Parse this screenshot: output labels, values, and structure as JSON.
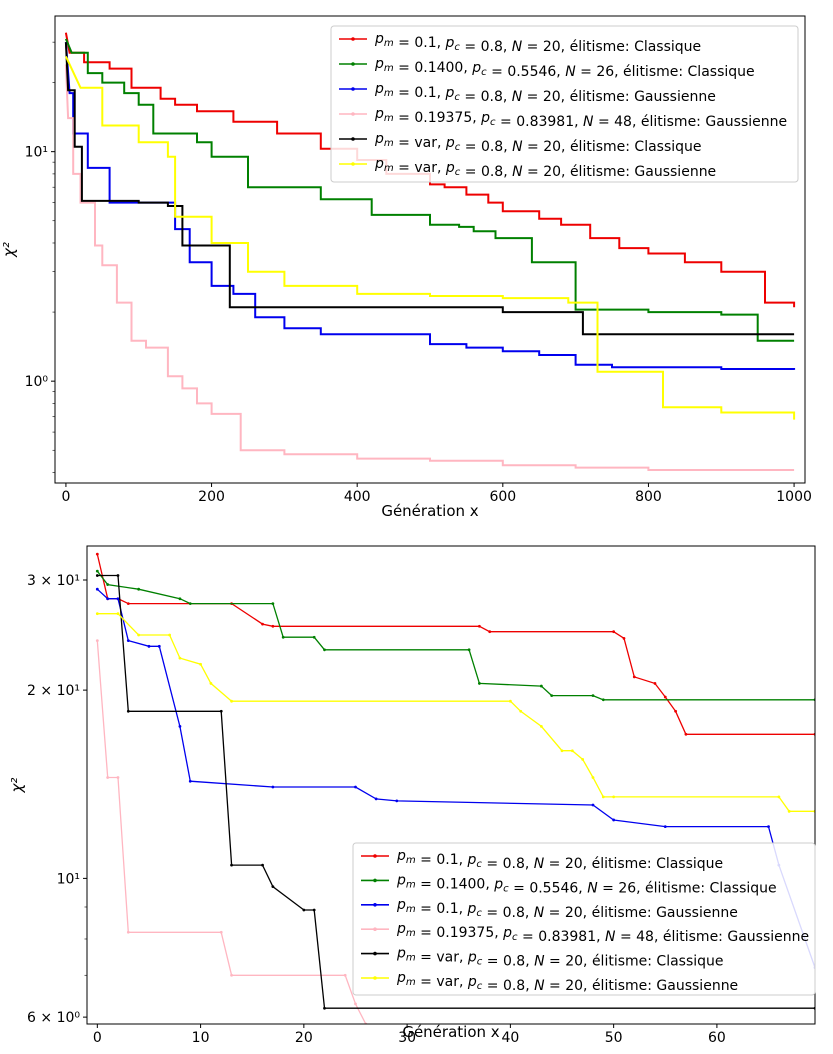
{
  "colors": {
    "red": "#ee0000",
    "green": "#008000",
    "blue": "#0000ee",
    "pink": "#ffb6c1",
    "black": "#000000",
    "yellow": "#ffff00"
  },
  "chart_data": [
    {
      "type": "line",
      "xlabel": "Génération x",
      "ylabel": "χ²",
      "yscale": "log",
      "xlim": [
        -15,
        1015
      ],
      "ylim": [
        0.36,
        39
      ],
      "xticks": [
        0,
        200,
        400,
        600,
        800,
        1000
      ],
      "xtick_labels": [
        "0",
        "200",
        "400",
        "600",
        "800",
        "1000"
      ],
      "yticks": [
        1,
        10
      ],
      "ytick_labels": [
        "10⁰",
        "10¹"
      ],
      "legend_position": "top-right",
      "series": [
        {
          "name": "p_m = 0.1, p_c = 0.8, N = 20, élitisme: Classique",
          "color": "red",
          "x": [
            0,
            5,
            25,
            60,
            90,
            130,
            150,
            180,
            230,
            290,
            350,
            400,
            440,
            500,
            520,
            550,
            580,
            600,
            650,
            680,
            720,
            760,
            800,
            850,
            900,
            960,
            1000
          ],
          "y": [
            33,
            27,
            24.5,
            23,
            19,
            17,
            16,
            15,
            13.5,
            12,
            10.3,
            9.2,
            8,
            7.2,
            7,
            6.5,
            6,
            5.5,
            5.1,
            4.8,
            4.2,
            3.8,
            3.6,
            3.3,
            3.0,
            2.2,
            2.1
          ]
        },
        {
          "name": "p_m = 0.1400, p_c = 0.5546, N = 26, élitisme: Classique",
          "color": "green",
          "x": [
            0,
            8,
            30,
            50,
            80,
            100,
            120,
            180,
            200,
            250,
            300,
            350,
            380,
            420,
            500,
            540,
            560,
            590,
            640,
            700,
            750,
            800,
            850,
            900,
            950,
            1000
          ],
          "y": [
            31,
            27,
            22,
            20,
            18,
            16,
            12,
            11,
            9.5,
            7,
            7,
            6.2,
            6.2,
            5.3,
            4.8,
            4.7,
            4.5,
            4.2,
            3.3,
            2.05,
            2.05,
            2.0,
            2.0,
            1.95,
            1.5,
            1.5
          ]
        },
        {
          "name": "p_m = 0.1, p_c = 0.8, N = 20, élitisme: Gaussienne",
          "color": "blue",
          "x": [
            0,
            5,
            10,
            30,
            60,
            100,
            150,
            170,
            200,
            230,
            260,
            300,
            350,
            400,
            500,
            550,
            600,
            650,
            700,
            750,
            800,
            900,
            1000
          ],
          "y": [
            30,
            18,
            12,
            8.5,
            6,
            6,
            4.6,
            3.3,
            2.6,
            2.4,
            1.9,
            1.7,
            1.6,
            1.6,
            1.45,
            1.4,
            1.35,
            1.3,
            1.18,
            1.15,
            1.15,
            1.13,
            1.12
          ]
        },
        {
          "name": "p_m = 0.19375, p_c = 0.83981, N = 48, élitisme: Gaussienne",
          "color": "pink",
          "x": [
            0,
            3,
            10,
            20,
            40,
            50,
            70,
            90,
            110,
            140,
            160,
            180,
            200,
            240,
            300,
            400,
            500,
            600,
            700,
            800,
            900,
            1000
          ],
          "y": [
            24,
            14,
            8,
            6,
            3.9,
            3.2,
            2.2,
            1.5,
            1.4,
            1.05,
            0.93,
            0.8,
            0.72,
            0.5,
            0.48,
            0.46,
            0.45,
            0.43,
            0.42,
            0.41,
            0.41,
            0.41
          ]
        },
        {
          "name": "p_m = var, p_c = 0.8, N = 20, élitisme: Classique",
          "color": "black",
          "x": [
            0,
            3,
            12,
            22,
            100,
            140,
            160,
            225,
            300,
            400,
            500,
            600,
            700,
            710,
            800,
            900,
            1000
          ],
          "y": [
            30,
            18.5,
            10.5,
            6.1,
            6.0,
            5.8,
            3.9,
            2.1,
            2.1,
            2.1,
            2.1,
            2.0,
            2.0,
            1.6,
            1.6,
            1.6,
            1.6
          ]
        },
        {
          "name": "p_m = var, p_c = 0.8, N = 20, élitisme: Gaussienne",
          "color": "yellow",
          "x": [
            0,
            20,
            50,
            80,
            100,
            140,
            150,
            200,
            250,
            300,
            400,
            500,
            600,
            690,
            730,
            800,
            820,
            900,
            1000
          ],
          "y": [
            26,
            19,
            13,
            13,
            11,
            9.5,
            5.2,
            4.0,
            3.0,
            2.6,
            2.4,
            2.35,
            2.3,
            2.2,
            1.1,
            1.1,
            0.77,
            0.73,
            0.68
          ]
        }
      ]
    },
    {
      "type": "line",
      "xlabel": "Génération x",
      "ylabel": "χ²",
      "yscale": "log",
      "xlim": [
        -1,
        69.5
      ],
      "ylim": [
        5.85,
        34
      ],
      "xticks": [
        0,
        10,
        20,
        30,
        40,
        50,
        60
      ],
      "xtick_labels": [
        "0",
        "10",
        "20",
        "30",
        "40",
        "50",
        "60"
      ],
      "yticks": [
        6,
        10,
        20,
        30
      ],
      "ytick_labels": [
        "6 × 10⁰",
        "10¹",
        "2 × 10¹",
        "3 × 10¹"
      ],
      "legend_position": "bottom-right",
      "series": [
        {
          "name": "p_m = 0.1, p_c = 0.8, N = 20, élitisme: Classique",
          "color": "red",
          "x": [
            0,
            1,
            2,
            3,
            13,
            16,
            17,
            37,
            38,
            50,
            51,
            52,
            54,
            55,
            56,
            57,
            69.5
          ],
          "y": [
            33,
            28,
            28,
            27.5,
            27.5,
            25.5,
            25.3,
            25.3,
            24.8,
            24.8,
            24.2,
            21,
            20.5,
            19.5,
            18.5,
            17,
            17
          ]
        },
        {
          "name": "p_m = 0.1400, p_c = 0.5546, N = 26, élitisme: Classique",
          "color": "green",
          "x": [
            0,
            1,
            4,
            8,
            9,
            17,
            18,
            21,
            22,
            36,
            37,
            43,
            44,
            48,
            49,
            69.5
          ],
          "y": [
            31,
            29.5,
            29,
            28,
            27.5,
            27.5,
            24.3,
            24.3,
            23.2,
            23.2,
            20.5,
            20.3,
            19.6,
            19.6,
            19.3,
            19.3
          ]
        },
        {
          "name": "p_m = 0.1, p_c = 0.8, N = 20, élitisme: Gaussienne",
          "color": "blue",
          "x": [
            0,
            1,
            2,
            3,
            5,
            6,
            8,
            9,
            17,
            25,
            27,
            29,
            48,
            50,
            55,
            65,
            66,
            69.5
          ],
          "y": [
            29,
            28,
            28,
            24,
            23.5,
            23.5,
            17.5,
            14.3,
            14,
            14,
            13.4,
            13.3,
            13.1,
            12.4,
            12.1,
            12.1,
            10.5,
            7.2
          ]
        },
        {
          "name": "p_m = 0.19375, p_c = 0.83981, N = 48, élitisme: Gaussienne",
          "color": "pink",
          "x": [
            0,
            1,
            2,
            3,
            12,
            13,
            24,
            25,
            26
          ],
          "y": [
            24,
            14.5,
            14.5,
            8.2,
            8.2,
            7,
            7,
            6.3,
            5.85
          ]
        },
        {
          "name": "p_m = var, p_c = 0.8, N = 20, élitisme: Classique",
          "color": "black",
          "x": [
            0,
            2,
            3,
            12,
            13,
            16,
            17,
            20,
            21,
            22,
            69.5
          ],
          "y": [
            30.5,
            30.5,
            18.5,
            18.5,
            10.5,
            10.5,
            9.7,
            8.9,
            8.9,
            6.2,
            6.2
          ]
        },
        {
          "name": "p_m = var, p_c = 0.8, N = 20, élitisme: Gaussienne",
          "color": "yellow",
          "x": [
            0,
            2,
            4,
            7,
            8,
            10,
            11,
            13,
            40,
            41,
            43,
            45,
            46,
            47,
            48,
            49,
            50,
            66,
            67,
            69.5
          ],
          "y": [
            26.5,
            26.5,
            24.5,
            24.5,
            22.5,
            22,
            20.5,
            19.2,
            19.2,
            18.5,
            17.5,
            16,
            16,
            15.5,
            14.5,
            13.5,
            13.5,
            13.5,
            12.8,
            12.8
          ]
        }
      ]
    }
  ]
}
